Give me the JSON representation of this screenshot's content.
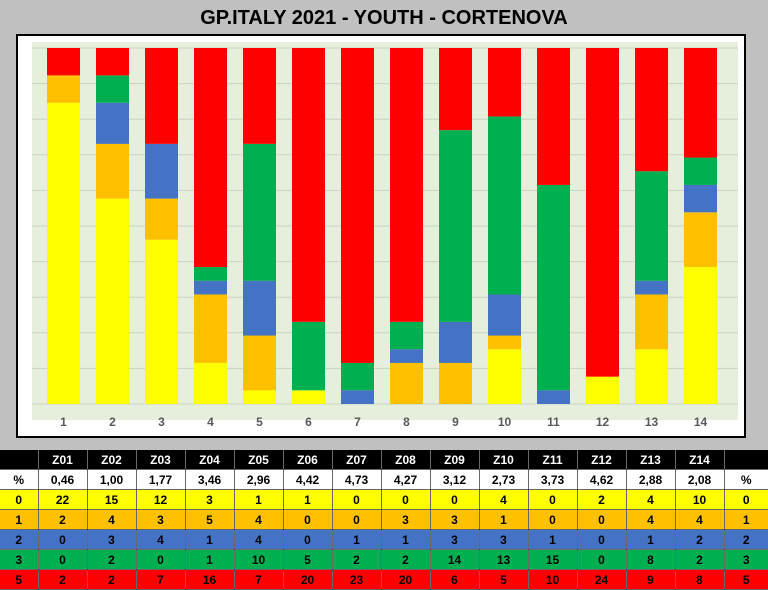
{
  "title": "GP.ITALY 2021 - YOUTH - CORTENOVA",
  "colors": {
    "plot_background": "#e6efdb",
    "gridline": "#c9d3bf",
    "score_0": "#ffff00",
    "score_1": "#ffc000",
    "score_2": "#4472c4",
    "score_3": "#00b050",
    "score_5": "#ff0000"
  },
  "chart_data": {
    "type": "bar",
    "stacked": true,
    "percent_stacked": true,
    "title": "GP.ITALY 2021 - YOUTH - CORTENOVA",
    "categories": [
      "1",
      "2",
      "3",
      "4",
      "5",
      "6",
      "7",
      "8",
      "9",
      "10",
      "11",
      "12",
      "13",
      "14"
    ],
    "grid": true,
    "legend": "none",
    "series": [
      {
        "name": "0",
        "color": "#ffff00",
        "values": [
          22,
          15,
          12,
          3,
          1,
          1,
          0,
          0,
          0,
          4,
          0,
          2,
          4,
          10
        ]
      },
      {
        "name": "1",
        "color": "#ffc000",
        "values": [
          2,
          4,
          3,
          5,
          4,
          0,
          0,
          3,
          3,
          1,
          0,
          0,
          4,
          4
        ]
      },
      {
        "name": "2",
        "color": "#4472c4",
        "values": [
          0,
          3,
          4,
          1,
          4,
          0,
          1,
          1,
          3,
          3,
          1,
          0,
          1,
          2
        ]
      },
      {
        "name": "3",
        "color": "#00b050",
        "values": [
          0,
          2,
          0,
          1,
          10,
          5,
          2,
          2,
          14,
          13,
          15,
          0,
          8,
          2
        ]
      },
      {
        "name": "5",
        "color": "#ff0000",
        "values": [
          2,
          2,
          7,
          16,
          7,
          20,
          23,
          20,
          6,
          5,
          10,
          24,
          9,
          8
        ]
      }
    ]
  },
  "table": {
    "header": [
      "",
      "Z01",
      "Z02",
      "Z03",
      "Z04",
      "Z05",
      "Z06",
      "Z07",
      "Z08",
      "Z09",
      "Z10",
      "Z11",
      "Z12",
      "Z13",
      "Z14",
      ""
    ],
    "rows": [
      {
        "cls": "row-pct",
        "cells": [
          "%",
          "0,46",
          "1,00",
          "1,77",
          "3,46",
          "2,96",
          "4,42",
          "4,73",
          "4,27",
          "3,12",
          "2,73",
          "3,73",
          "4,62",
          "2,88",
          "2,08",
          "%"
        ]
      },
      {
        "cls": "row-0",
        "cells": [
          "0",
          "22",
          "15",
          "12",
          "3",
          "1",
          "1",
          "0",
          "0",
          "0",
          "4",
          "0",
          "2",
          "4",
          "10",
          "0"
        ]
      },
      {
        "cls": "row-1",
        "cells": [
          "1",
          "2",
          "4",
          "3",
          "5",
          "4",
          "0",
          "0",
          "3",
          "3",
          "1",
          "0",
          "0",
          "4",
          "4",
          "1"
        ]
      },
      {
        "cls": "row-2",
        "cells": [
          "2",
          "0",
          "3",
          "4",
          "1",
          "4",
          "0",
          "1",
          "1",
          "3",
          "3",
          "1",
          "0",
          "1",
          "2",
          "2"
        ]
      },
      {
        "cls": "row-3",
        "cells": [
          "3",
          "0",
          "2",
          "0",
          "1",
          "10",
          "5",
          "2",
          "2",
          "14",
          "13",
          "15",
          "0",
          "8",
          "2",
          "3"
        ]
      },
      {
        "cls": "row-5",
        "cells": [
          "5",
          "2",
          "2",
          "7",
          "16",
          "7",
          "20",
          "23",
          "20",
          "6",
          "5",
          "10",
          "24",
          "9",
          "8",
          "5"
        ]
      }
    ]
  }
}
